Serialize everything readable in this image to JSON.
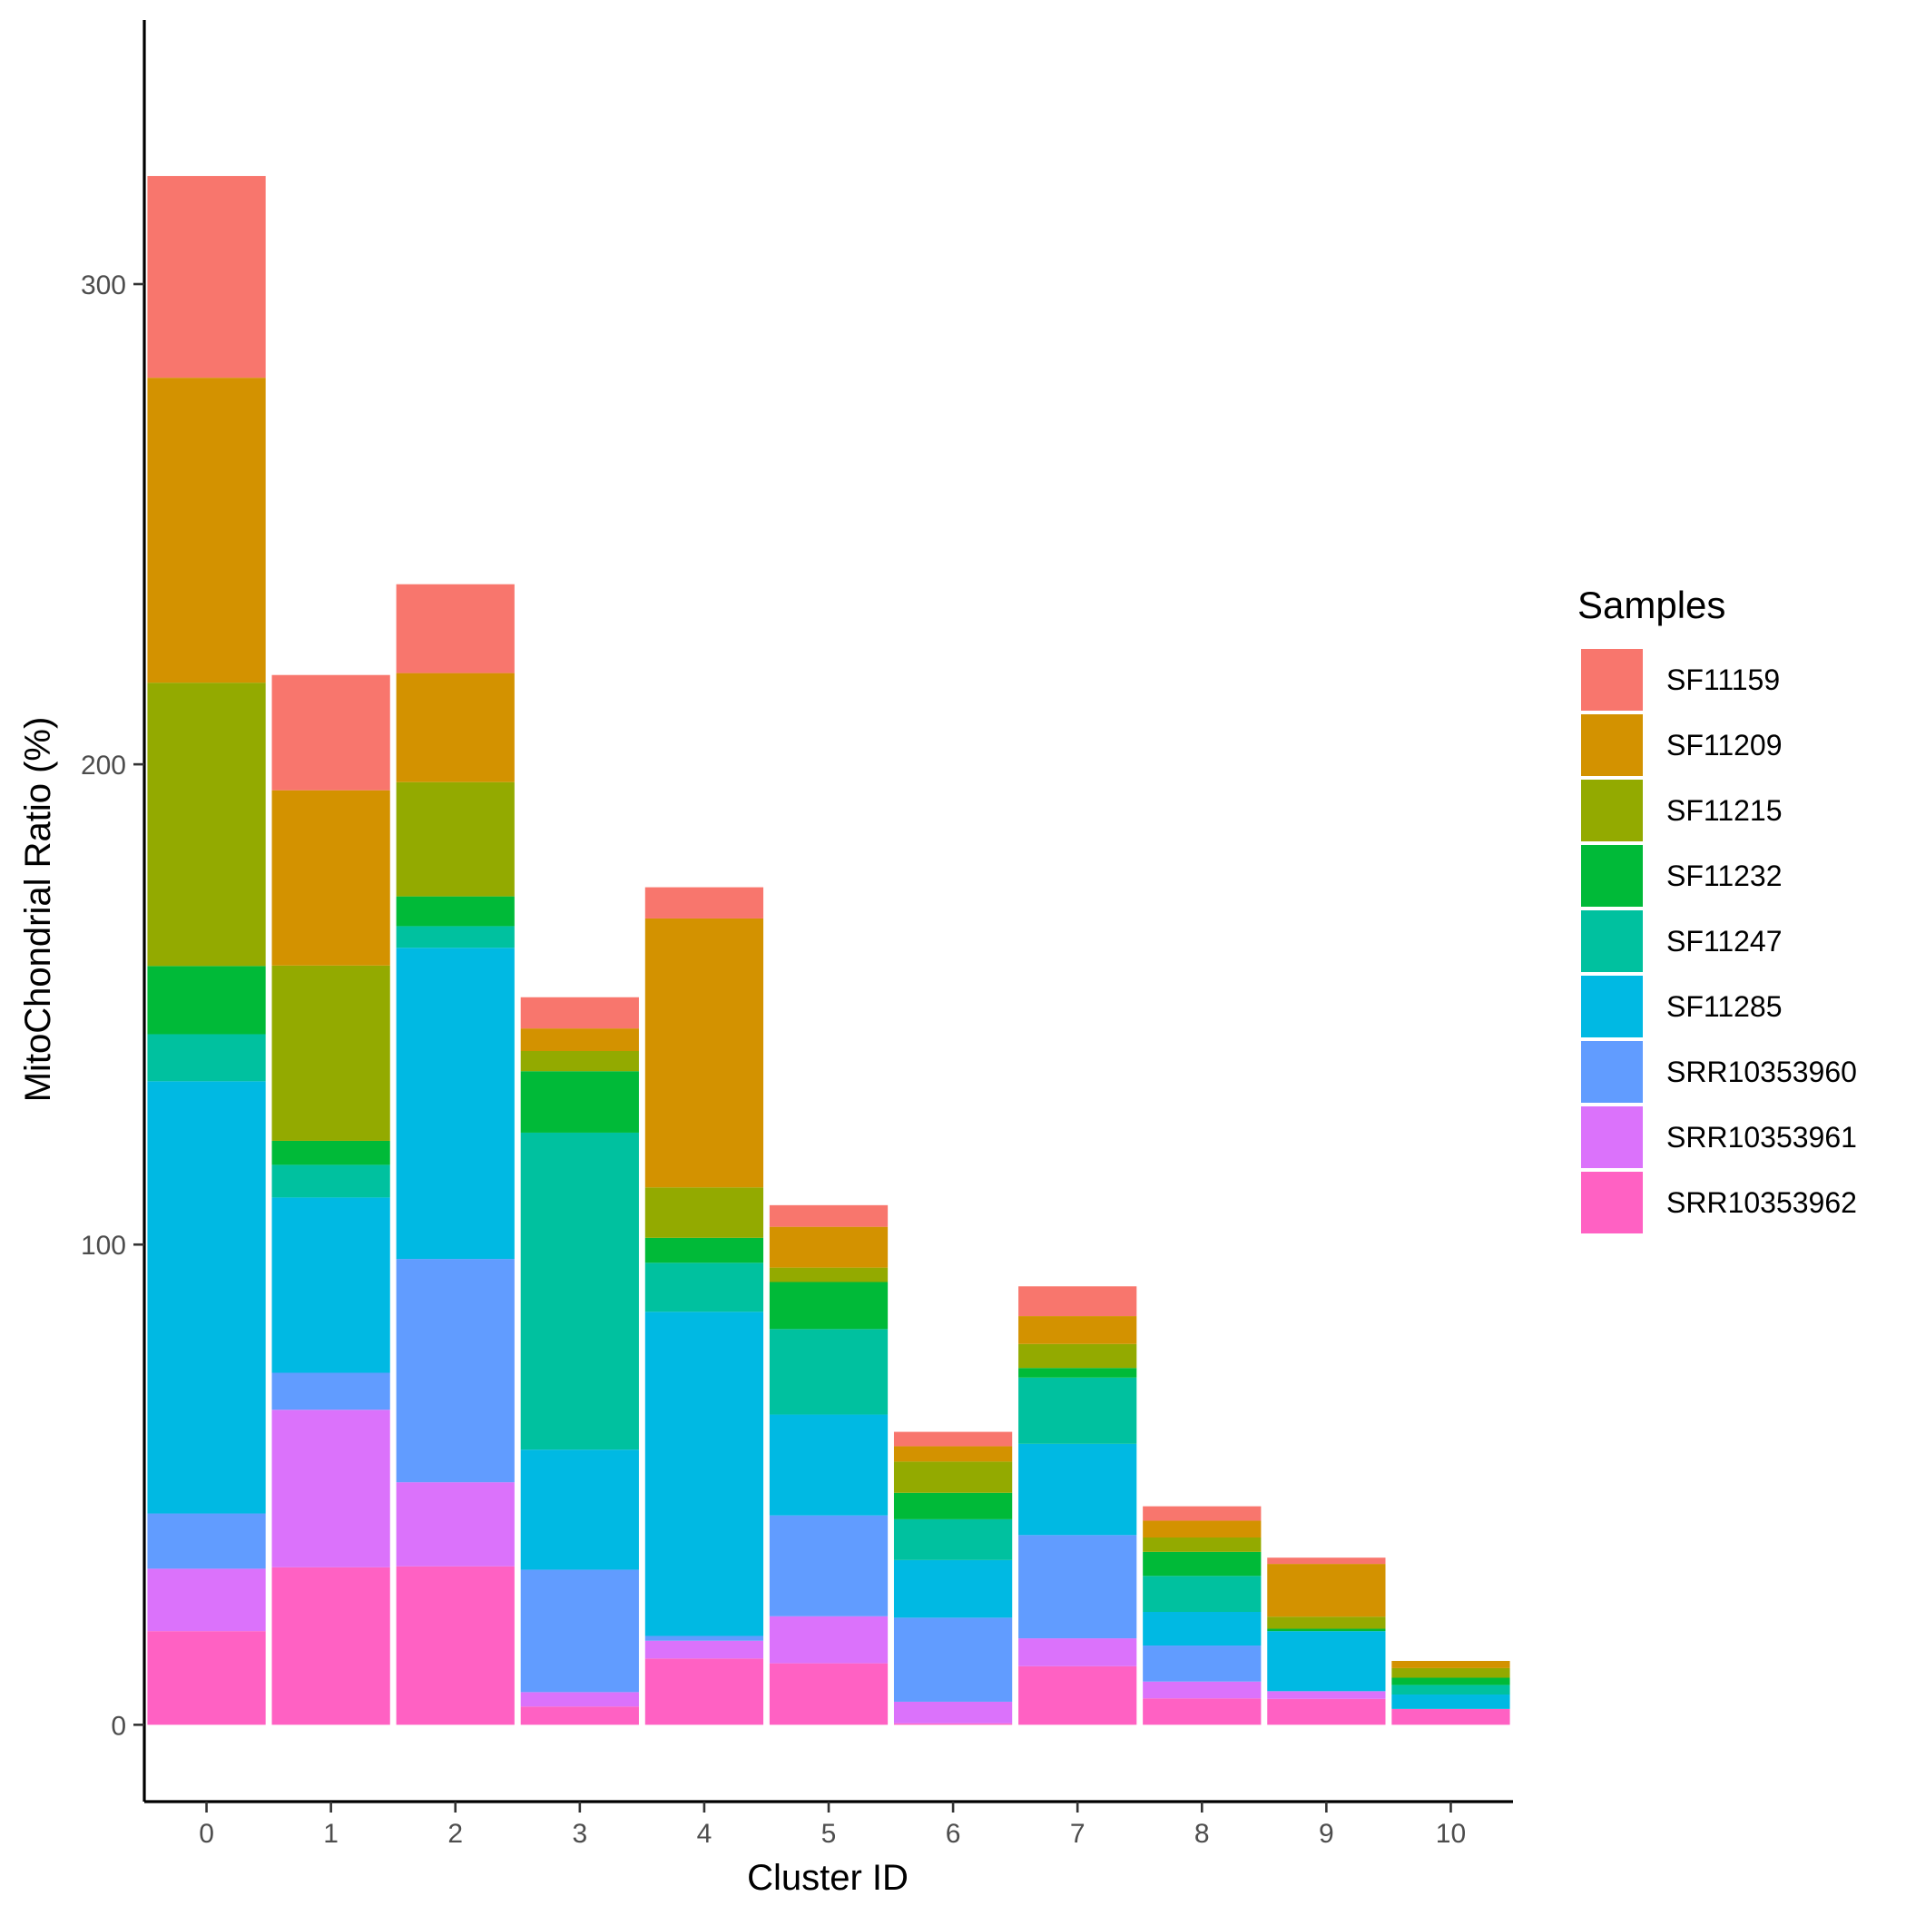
{
  "chart_data": {
    "type": "bar",
    "stacked": true,
    "title": "",
    "xlabel": "Cluster ID",
    "ylabel": "MitoChondrial Ratio (%)",
    "ylim": [
      -16,
      355
    ],
    "yticks": [
      0,
      100,
      200,
      300
    ],
    "categories": [
      "0",
      "1",
      "2",
      "3",
      "4",
      "5",
      "6",
      "7",
      "8",
      "9",
      "10"
    ],
    "legend_title": "Samples",
    "legend_position": "right",
    "series": [
      {
        "name": "SRR10353962",
        "color": "#FF61C3",
        "values": [
          19.5,
          32.8,
          33.0,
          3.8,
          13.8,
          12.8,
          0.3,
          12.2,
          5.5,
          5.4,
          3.3
        ]
      },
      {
        "name": "SRR10353961",
        "color": "#DB72FB",
        "values": [
          13.0,
          32.8,
          17.5,
          3.0,
          3.7,
          9.8,
          4.5,
          5.8,
          3.5,
          1.6,
          0.0
        ]
      },
      {
        "name": "SRR10353960",
        "color": "#619CFF",
        "values": [
          11.5,
          7.7,
          46.5,
          25.5,
          1.0,
          21.0,
          17.5,
          21.5,
          7.5,
          0.0,
          0.0
        ]
      },
      {
        "name": "SF11285",
        "color": "#00B9E3",
        "values": [
          90.0,
          36.5,
          64.8,
          25.0,
          67.5,
          21.0,
          12.0,
          19.0,
          7.0,
          12.5,
          3.0
        ]
      },
      {
        "name": "SF11247",
        "color": "#00C19F",
        "values": [
          9.8,
          6.8,
          4.5,
          66.0,
          10.2,
          17.8,
          8.5,
          13.8,
          7.5,
          0.0,
          2.0
        ]
      },
      {
        "name": "SF11232",
        "color": "#00BA38",
        "values": [
          14.2,
          5.0,
          6.2,
          12.8,
          5.2,
          9.8,
          5.5,
          2.0,
          5.0,
          0.5,
          1.5
        ]
      },
      {
        "name": "SF11215",
        "color": "#93AA00",
        "values": [
          59.0,
          36.5,
          23.8,
          4.2,
          10.5,
          3.0,
          6.5,
          5.0,
          3.0,
          2.5,
          2.0
        ]
      },
      {
        "name": "SF11209",
        "color": "#D39200",
        "values": [
          63.5,
          36.5,
          22.7,
          4.7,
          56.0,
          8.5,
          3.2,
          5.8,
          3.5,
          11.0,
          1.5
        ]
      },
      {
        "name": "SF11159",
        "color": "#F8766D",
        "values": [
          42.0,
          24.0,
          18.5,
          6.5,
          6.5,
          4.5,
          3.0,
          6.2,
          3.0,
          1.3,
          0.0
        ]
      }
    ],
    "legend_order": [
      "SF11159",
      "SF11209",
      "SF11215",
      "SF11232",
      "SF11247",
      "SF11285",
      "SRR10353960",
      "SRR10353961",
      "SRR10353962"
    ],
    "grid": false
  }
}
